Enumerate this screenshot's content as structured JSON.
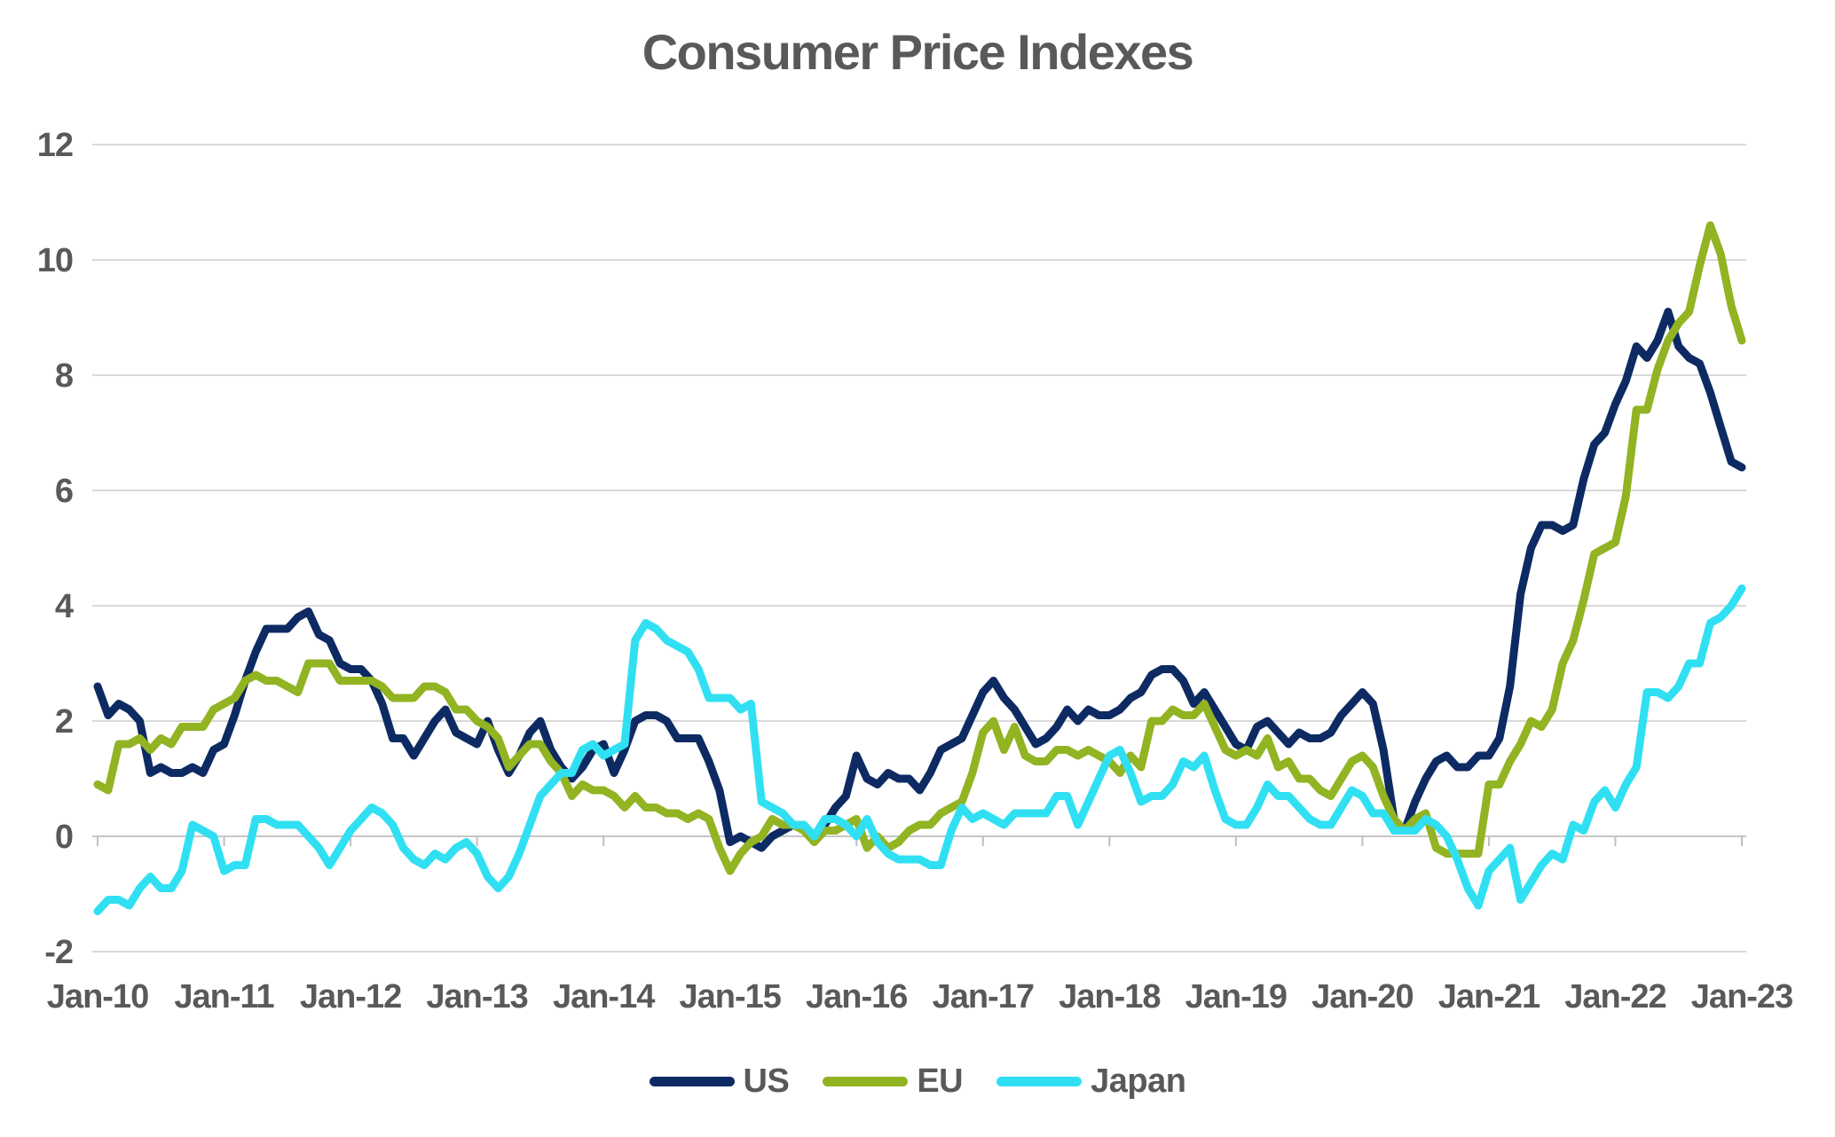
{
  "title": "Consumer Price Indexes",
  "colors": {
    "us": "#0D2A63",
    "eu": "#92B322",
    "japan": "#30E0F2",
    "gridline": "#D9D9D9",
    "axis": "#C6C6C6",
    "text": "#595959"
  },
  "chart_data": {
    "type": "line",
    "title": "Consumer Price Indexes",
    "xlabel": "",
    "ylabel": "",
    "ylim": [
      -2,
      12
    ],
    "y_ticks": [
      12,
      10,
      8,
      6,
      4,
      2,
      0,
      -2
    ],
    "x_tick_labels": [
      "Jan-10",
      "Jan-11",
      "Jan-12",
      "Jan-13",
      "Jan-14",
      "Jan-15",
      "Jan-16",
      "Jan-17",
      "Jan-18",
      "Jan-19",
      "Jan-20",
      "Jan-21",
      "Jan-22",
      "Jan-23"
    ],
    "x_frequency": "monthly",
    "x_range": "Jan-2010 to Jan-2023",
    "grid": "horizontal",
    "legend_position": "bottom",
    "series": [
      {
        "name": "US",
        "color": "#0D2A63",
        "values": [
          2.6,
          2.1,
          2.3,
          2.2,
          2.0,
          1.1,
          1.2,
          1.1,
          1.1,
          1.2,
          1.1,
          1.5,
          1.6,
          2.1,
          2.7,
          3.2,
          3.6,
          3.6,
          3.6,
          3.8,
          3.9,
          3.5,
          3.4,
          3.0,
          2.9,
          2.9,
          2.7,
          2.3,
          1.7,
          1.7,
          1.4,
          1.7,
          2.0,
          2.2,
          1.8,
          1.7,
          1.6,
          2.0,
          1.5,
          1.1,
          1.4,
          1.8,
          2.0,
          1.5,
          1.2,
          1.0,
          1.2,
          1.5,
          1.6,
          1.1,
          1.5,
          2.0,
          2.1,
          2.1,
          2.0,
          1.7,
          1.7,
          1.7,
          1.3,
          0.8,
          -0.1,
          0.0,
          -0.1,
          -0.2,
          0.0,
          0.1,
          0.2,
          0.2,
          0.0,
          0.2,
          0.5,
          0.7,
          1.4,
          1.0,
          0.9,
          1.1,
          1.0,
          1.0,
          0.8,
          1.1,
          1.5,
          1.6,
          1.7,
          2.1,
          2.5,
          2.7,
          2.4,
          2.2,
          1.9,
          1.6,
          1.7,
          1.9,
          2.2,
          2.0,
          2.2,
          2.1,
          2.1,
          2.2,
          2.4,
          2.5,
          2.8,
          2.9,
          2.9,
          2.7,
          2.3,
          2.5,
          2.2,
          1.9,
          1.6,
          1.5,
          1.9,
          2.0,
          1.8,
          1.6,
          1.8,
          1.7,
          1.7,
          1.8,
          2.1,
          2.3,
          2.5,
          2.3,
          1.5,
          0.3,
          0.1,
          0.6,
          1.0,
          1.3,
          1.4,
          1.2,
          1.2,
          1.4,
          1.4,
          1.7,
          2.6,
          4.2,
          5.0,
          5.4,
          5.4,
          5.3,
          5.4,
          6.2,
          6.8,
          7.0,
          7.5,
          7.9,
          8.5,
          8.3,
          8.6,
          9.1,
          8.5,
          8.3,
          8.2,
          7.7,
          7.1,
          6.5,
          6.4
        ]
      },
      {
        "name": "EU",
        "color": "#92B322",
        "values": [
          0.9,
          0.8,
          1.6,
          1.6,
          1.7,
          1.5,
          1.7,
          1.6,
          1.9,
          1.9,
          1.9,
          2.2,
          2.3,
          2.4,
          2.7,
          2.8,
          2.7,
          2.7,
          2.6,
          2.5,
          3.0,
          3.0,
          3.0,
          2.7,
          2.7,
          2.7,
          2.7,
          2.6,
          2.4,
          2.4,
          2.4,
          2.6,
          2.6,
          2.5,
          2.2,
          2.2,
          2.0,
          1.9,
          1.7,
          1.2,
          1.4,
          1.6,
          1.6,
          1.3,
          1.1,
          0.7,
          0.9,
          0.8,
          0.8,
          0.7,
          0.5,
          0.7,
          0.5,
          0.5,
          0.4,
          0.4,
          0.3,
          0.4,
          0.3,
          -0.2,
          -0.6,
          -0.3,
          -0.1,
          0.0,
          0.3,
          0.2,
          0.2,
          0.1,
          -0.1,
          0.1,
          0.1,
          0.2,
          0.3,
          -0.2,
          0.0,
          -0.2,
          -0.1,
          0.1,
          0.2,
          0.2,
          0.4,
          0.5,
          0.6,
          1.1,
          1.8,
          2.0,
          1.5,
          1.9,
          1.4,
          1.3,
          1.3,
          1.5,
          1.5,
          1.4,
          1.5,
          1.4,
          1.3,
          1.1,
          1.4,
          1.2,
          2.0,
          2.0,
          2.2,
          2.1,
          2.1,
          2.3,
          1.9,
          1.5,
          1.4,
          1.5,
          1.4,
          1.7,
          1.2,
          1.3,
          1.0,
          1.0,
          0.8,
          0.7,
          1.0,
          1.3,
          1.4,
          1.2,
          0.7,
          0.3,
          0.1,
          0.3,
          0.4,
          -0.2,
          -0.3,
          -0.3,
          -0.3,
          -0.3,
          0.9,
          0.9,
          1.3,
          1.6,
          2.0,
          1.9,
          2.2,
          3.0,
          3.4,
          4.1,
          4.9,
          5.0,
          5.1,
          5.9,
          7.4,
          7.4,
          8.1,
          8.6,
          8.9,
          9.1,
          9.9,
          10.6,
          10.1,
          9.2,
          8.6
        ]
      },
      {
        "name": "Japan",
        "color": "#30E0F2",
        "values": [
          -1.3,
          -1.1,
          -1.1,
          -1.2,
          -0.9,
          -0.7,
          -0.9,
          -0.9,
          -0.6,
          0.2,
          0.1,
          0.0,
          -0.6,
          -0.5,
          -0.5,
          0.3,
          0.3,
          0.2,
          0.2,
          0.2,
          0.0,
          -0.2,
          -0.5,
          -0.2,
          0.1,
          0.3,
          0.5,
          0.4,
          0.2,
          -0.2,
          -0.4,
          -0.5,
          -0.3,
          -0.4,
          -0.2,
          -0.1,
          -0.3,
          -0.7,
          -0.9,
          -0.7,
          -0.3,
          0.2,
          0.7,
          0.9,
          1.1,
          1.1,
          1.5,
          1.6,
          1.4,
          1.5,
          1.6,
          3.4,
          3.7,
          3.6,
          3.4,
          3.3,
          3.2,
          2.9,
          2.4,
          2.4,
          2.4,
          2.2,
          2.3,
          0.6,
          0.5,
          0.4,
          0.2,
          0.2,
          0.0,
          0.3,
          0.3,
          0.2,
          0.0,
          0.3,
          -0.1,
          -0.3,
          -0.4,
          -0.4,
          -0.4,
          -0.5,
          -0.5,
          0.1,
          0.5,
          0.3,
          0.4,
          0.3,
          0.2,
          0.4,
          0.4,
          0.4,
          0.4,
          0.7,
          0.7,
          0.2,
          0.6,
          1.0,
          1.4,
          1.5,
          1.1,
          0.6,
          0.7,
          0.7,
          0.9,
          1.3,
          1.2,
          1.4,
          0.8,
          0.3,
          0.2,
          0.2,
          0.5,
          0.9,
          0.7,
          0.7,
          0.5,
          0.3,
          0.2,
          0.2,
          0.5,
          0.8,
          0.7,
          0.4,
          0.4,
          0.1,
          0.1,
          0.1,
          0.3,
          0.2,
          0.0,
          -0.4,
          -0.9,
          -1.2,
          -0.6,
          -0.4,
          -0.2,
          -1.1,
          -0.8,
          -0.5,
          -0.3,
          -0.4,
          0.2,
          0.1,
          0.6,
          0.8,
          0.5,
          0.9,
          1.2,
          2.5,
          2.5,
          2.4,
          2.6,
          3.0,
          3.0,
          3.7,
          3.8,
          4.0,
          4.3
        ]
      }
    ]
  }
}
